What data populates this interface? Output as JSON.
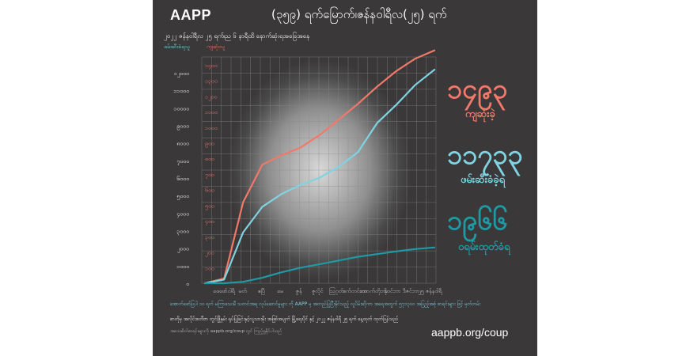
{
  "poster": {
    "brand": "AAPP",
    "headline": "(၃၅၉) ရက်မြောက်၊ဇန်နဝါရီလ(၂၅) ရက်",
    "subtitle": "၂၀၂၂ ဇန်နဝါရီလ ၂၅ ရက်၊ည ၆ နာရီထိ နောက်ဆုံးရအခြေအနေ",
    "legend_arrested": "ဖမ်းဆီးခံရသူ",
    "legend_killed": "ကျဆုံးသူ",
    "killed_total": "၁၄၉၃",
    "killed_label": "ကျဆုံးခဲ့",
    "arrested_total": "၁၁၇၃၃",
    "arrested_label": "ဖမ်းဆီးခံခဲ့ရ",
    "sentenced_total": "၁၉၆၆",
    "sentenced_label": "ဝရမ်းထုတ်ခံရ",
    "last_x_label": "၂၅ ဇန်နဝါရီ",
    "footnote_1": "အောက်ဖော်ပြပါ ၁၀ ရက် မကြာသေးမီ သတင်းအရ လုပ်ဆောင်မှုများ ကို AAPP မှ အတည်ပြုပြီးနိုင်သည့် လူပိမ်းဆိုကာ အရေအတွက် ၅၇၁၃၀၀ အပြည့်အစုံ စာရင်းများ ဖြင့် မှတ်တမ်း",
    "footnote_2": "စာတိုမှ အလိုင်းစတီဗာ တွင်ဖြိုနှမ်း ရုပ်ပြုခြင်းနှင့်လူသားမိုး အဖြစ်အပျက် မြို့ရေးပိုင် နှင့် ၂၀၂၂ ဇန်နဝါရီ ၂၅ ရက် နေ့ထုတ် ထုတ်ပြန်သည်",
    "footnote_3": "အသေးစိတ်စာရင်းများကို aappb.org/coup တွင် ကြည့်ရှုနိုင်ပါသည်",
    "url": "aappb.org/coup"
  },
  "chart_data": {
    "type": "line",
    "title": "",
    "xlabel": "",
    "ylabel": "",
    "y_tick_labels_arrested": [
      "၀",
      "၁၀၀၀",
      "၂၀၀၀",
      "၃၀၀၀",
      "၄၀၀၀",
      "၅၀၀၀",
      "၆၀၀၀",
      "၇၀၀၀",
      "၈၀၀၀",
      "၉၀၀၀",
      "၁၀၀၀၀",
      "၁၁၀၀၀",
      "၁၂၀၀၀"
    ],
    "y_tick_labels_killed": [
      "",
      "၁၀၀",
      "၂၀၀",
      "၃၀၀",
      "၄၀၀",
      "၅၀၀",
      "၆၀၀",
      "၇၀၀",
      "၈၀၀",
      "၉၀၀",
      "၁၀၀၀",
      "၁၁၀၀",
      "၁၂၀၀",
      "၁၃၀၀",
      "၁၄၀၀"
    ],
    "x_tick_labels": [
      "ဖေဖော်ဝါရီ",
      "မတ်",
      "ဧပြီ",
      "မေ",
      "ဇွန်",
      "ဇူလိုင်",
      "ဩဂုတ်",
      "စက်တင်ဘာ",
      "အောက်တိုဘာ",
      "နိုဝင်ဘာ",
      "ဒီဇင်ဘာ",
      "၂၅ ဇန်နဝါရီ"
    ],
    "ylim": [
      0,
      12000
    ],
    "grid": true,
    "colors": {
      "killed": "#f0796a",
      "arrested": "#7fd3e2",
      "sentenced": "#1f9aa4"
    },
    "series": [
      {
        "key": "killed",
        "unit_max": 1400,
        "values": [
          0,
          30,
          520,
          760,
          820,
          870,
          950,
          1050,
          1150,
          1260,
          1360,
          1440,
          1493
        ]
      },
      {
        "key": "arrested",
        "unit_max": 12000,
        "values": [
          0,
          200,
          2800,
          4200,
          4900,
          5400,
          5800,
          6400,
          7200,
          8800,
          9800,
          10900,
          11733
        ]
      },
      {
        "key": "sentenced",
        "unit_max": 12000,
        "values": [
          0,
          0,
          80,
          300,
          600,
          850,
          1050,
          1250,
          1450,
          1600,
          1750,
          1880,
          1966
        ]
      }
    ]
  }
}
